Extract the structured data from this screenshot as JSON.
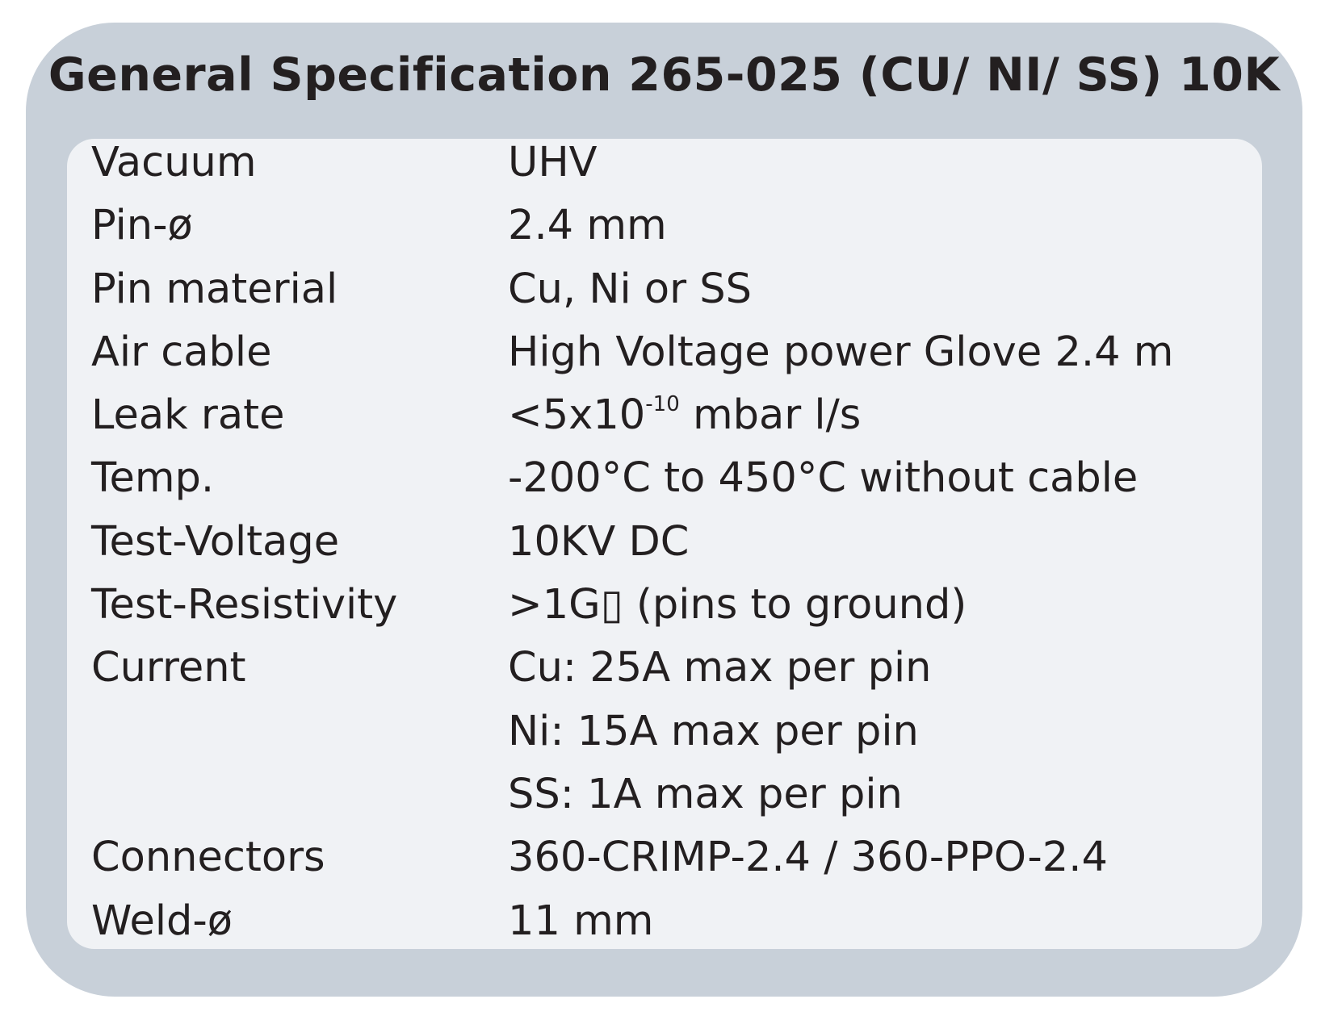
{
  "title": "General Specification 265-025 (CU/ NI/ SS) 10K",
  "colors": {
    "frame": "#c8d0d9",
    "panel": "#f0f2f5",
    "text": "#231f20"
  },
  "specs": [
    {
      "label": "Vacuum",
      "value": "UHV"
    },
    {
      "label": "Pin-ø",
      "value": "2.4 mm"
    },
    {
      "label": "Pin material",
      "value": "Cu, Ni or SS"
    },
    {
      "label": "Air cable",
      "value": "High Voltage power Glove 2.4 m"
    },
    {
      "label": "Leak rate",
      "value_prefix": "<5x10",
      "value_sup": "-10",
      "value_suffix": " mbar l/s"
    },
    {
      "label": "Temp.",
      "value": "-200°C to 450°C without cable"
    },
    {
      "label": "Test-Voltage",
      "value": "10KV DC"
    },
    {
      "label": "Test-Resistivity",
      "value": ">1G▯ (pins to ground)"
    },
    {
      "label": "Current",
      "value": "Cu: 25A max per pin"
    },
    {
      "label": "",
      "value": "Ni: 15A max per pin"
    },
    {
      "label": "",
      "value": "SS: 1A max per pin"
    },
    {
      "label": "Connectors",
      "value": "360-CRIMP-2.4 / 360-PPO-2.4"
    },
    {
      "label": "Weld-ø",
      "value": "11 mm"
    }
  ]
}
